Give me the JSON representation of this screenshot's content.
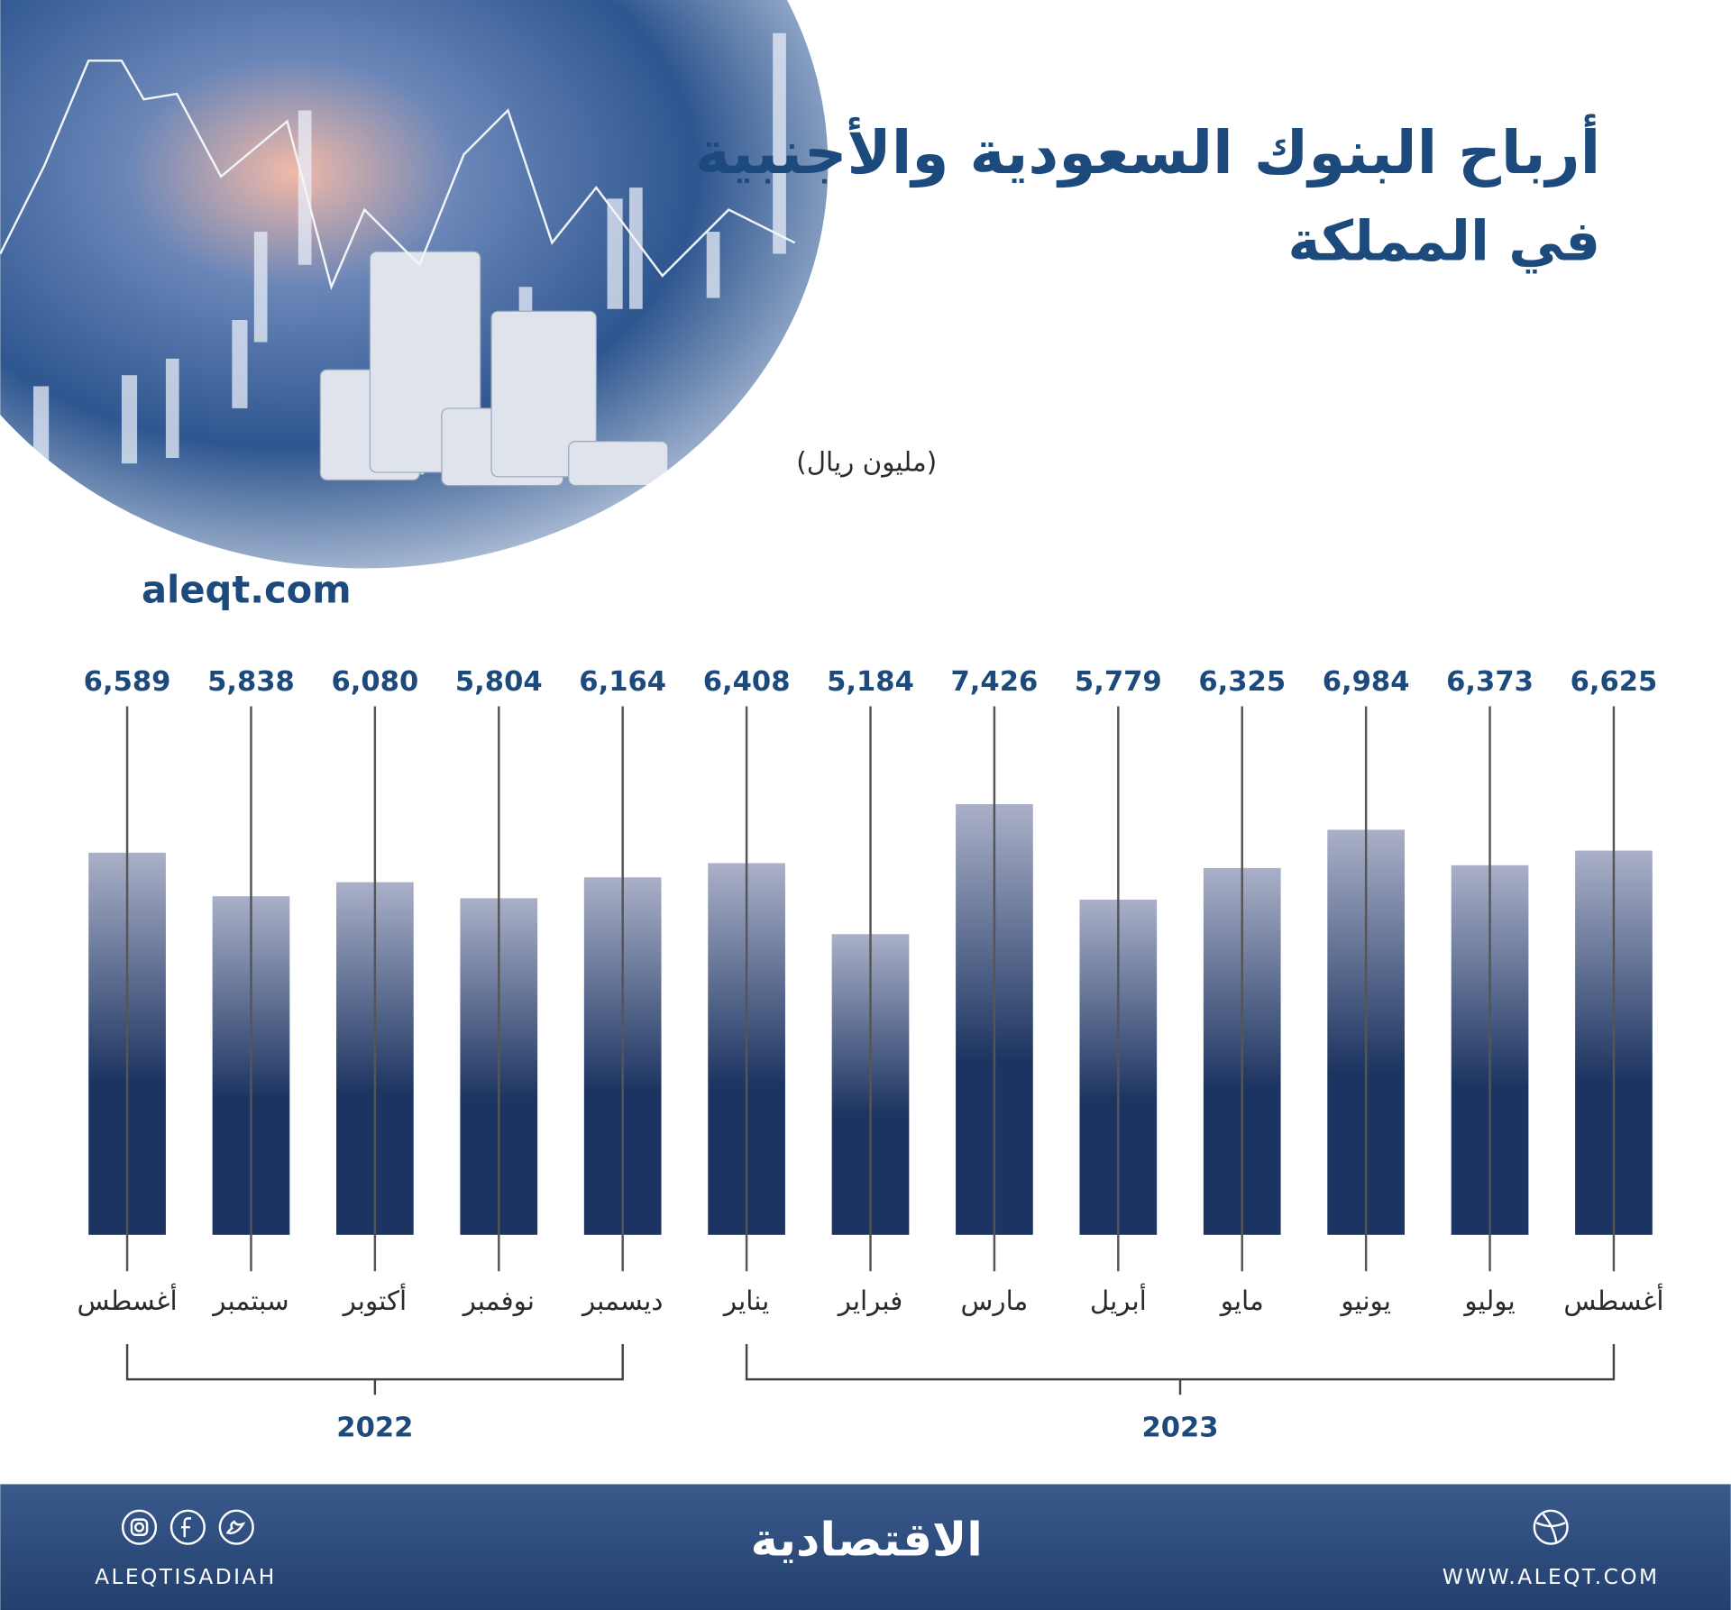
{
  "chart_data": {
    "type": "bar",
    "title": "أرباح البنوك السعودية والأجنبية",
    "subtitle": "في المملكة",
    "unit_label": "(مليون ريال)",
    "source": "aleqt.com",
    "categories": [
      "أغسطس",
      "سبتمبر",
      "أكتوبر",
      "نوفمبر",
      "ديسمبر",
      "يناير",
      "فبراير",
      "مارس",
      "أبريل",
      "مايو",
      "يونيو",
      "يوليو",
      "أغسطس"
    ],
    "years": [
      "2022",
      "2022",
      "2022",
      "2022",
      "2022",
      "2023",
      "2023",
      "2023",
      "2023",
      "2023",
      "2023",
      "2023",
      "2023"
    ],
    "values": [
      6589,
      5838,
      6080,
      5804,
      6164,
      6408,
      5184,
      7426,
      5779,
      6325,
      6984,
      6373,
      6625
    ],
    "value_labels": [
      "6,589",
      "5,838",
      "6,080",
      "5,804",
      "6,164",
      "6,408",
      "5,184",
      "7,426",
      "5,779",
      "6,325",
      "6,984",
      "6,373",
      "6,625"
    ],
    "ylim": [
      0,
      9000
    ],
    "color": "#1c3461"
  },
  "footer": {
    "social_handle": "ALEQTISADIAH",
    "logo": "الاقتصادية",
    "website": "WWW.ALEQT.COM"
  }
}
